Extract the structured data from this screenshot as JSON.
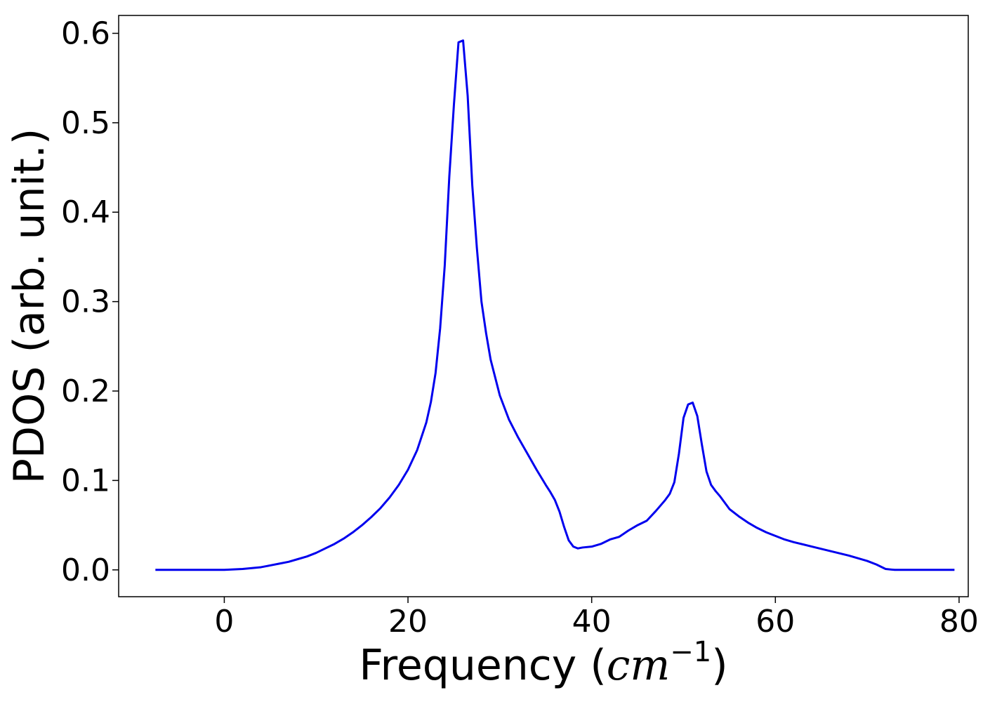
{
  "chart_data": {
    "type": "line",
    "title": "",
    "xlabel_text": "Frequency (",
    "xlabel_math_base": "cm",
    "xlabel_math_sup": "−1",
    "xlabel_close": ")",
    "ylabel": "PDOS (arb. unit.)",
    "xlim": [
      -11.5,
      81
    ],
    "ylim": [
      -0.03,
      0.62
    ],
    "x_ticks": [
      0,
      20,
      40,
      60,
      80
    ],
    "x_tick_labels": [
      "0",
      "20",
      "40",
      "60",
      "80"
    ],
    "y_ticks": [
      0.0,
      0.1,
      0.2,
      0.3,
      0.4,
      0.5,
      0.6
    ],
    "y_tick_labels": [
      "0.0",
      "0.1",
      "0.2",
      "0.3",
      "0.4",
      "0.5",
      "0.6"
    ],
    "grid": false,
    "legend": "none",
    "series": [
      {
        "color": "#0000ee",
        "x": [
          -7.5,
          -5,
          -2,
          0,
          1,
          2,
          3,
          4,
          5,
          6,
          7,
          8,
          9,
          10,
          11,
          12,
          13,
          14,
          15,
          16,
          17,
          18,
          19,
          20,
          21,
          22,
          22.5,
          23,
          23.5,
          24,
          24.5,
          25,
          25.5,
          26,
          26.5,
          27,
          27.5,
          28,
          28.5,
          29,
          29.5,
          30,
          31,
          32,
          33,
          34,
          35,
          35.5,
          36,
          36.5,
          37,
          37.5,
          38,
          38.5,
          39,
          40,
          41,
          42,
          43,
          44,
          45,
          46,
          47,
          48,
          48.5,
          49,
          49.5,
          50,
          50.5,
          51,
          51.5,
          52,
          52.5,
          53,
          53.5,
          54,
          55,
          56,
          57,
          58,
          59,
          60,
          61,
          62,
          64,
          66,
          68,
          70,
          71,
          72,
          73,
          74,
          76,
          79.5
        ],
        "y": [
          0.0,
          0.0,
          0.0,
          0.0,
          0.0005,
          0.001,
          0.002,
          0.003,
          0.005,
          0.007,
          0.009,
          0.012,
          0.015,
          0.019,
          0.024,
          0.029,
          0.035,
          0.042,
          0.05,
          0.059,
          0.069,
          0.081,
          0.095,
          0.112,
          0.134,
          0.165,
          0.188,
          0.22,
          0.27,
          0.34,
          0.44,
          0.52,
          0.59,
          0.592,
          0.53,
          0.43,
          0.36,
          0.3,
          0.265,
          0.235,
          0.215,
          0.195,
          0.168,
          0.148,
          0.13,
          0.112,
          0.095,
          0.087,
          0.078,
          0.065,
          0.048,
          0.033,
          0.026,
          0.024,
          0.025,
          0.026,
          0.029,
          0.034,
          0.037,
          0.044,
          0.05,
          0.055,
          0.066,
          0.078,
          0.085,
          0.098,
          0.13,
          0.17,
          0.185,
          0.187,
          0.172,
          0.14,
          0.11,
          0.095,
          0.088,
          0.082,
          0.068,
          0.06,
          0.053,
          0.047,
          0.042,
          0.038,
          0.034,
          0.031,
          0.026,
          0.021,
          0.016,
          0.01,
          0.006,
          0.001,
          0.0,
          0.0,
          0.0,
          0.0
        ]
      }
    ]
  }
}
